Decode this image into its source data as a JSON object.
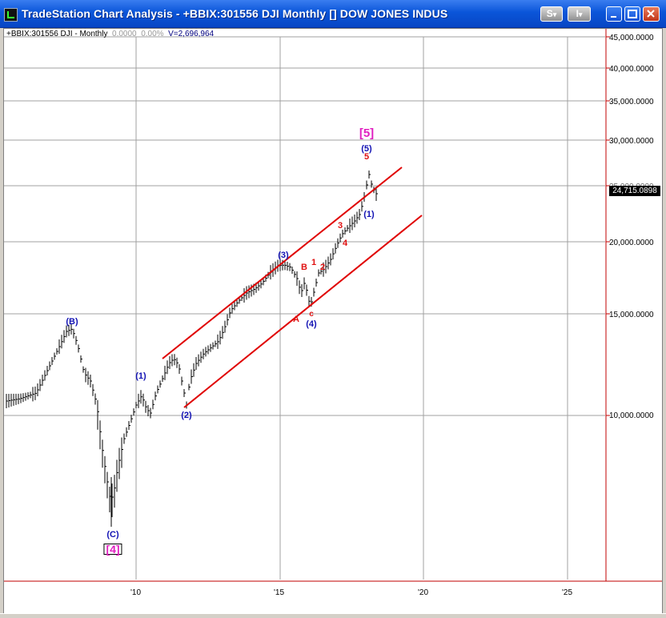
{
  "window": {
    "title": "TradeStation Chart Analysis - +BBIX:301556 DJI Monthly [] DOW JONES INDUS",
    "buttons": {
      "s_menu": "S",
      "i_menu": "I",
      "dropdown_arrow": "▾"
    }
  },
  "chart": {
    "header": {
      "symbol": "+BBIX:301556 DJI - Monthly",
      "change": "0.0000",
      "change_pct": "0.00%",
      "volume": "V=2,696,964"
    },
    "last_price": "24,715.0898",
    "price_labels": [
      "45,000.0000",
      "40,000.0000",
      "35,000.0000",
      "30,000.0000",
      "20,000.0000",
      "15,000.0000",
      "10,000.0000"
    ],
    "hidden_price_label": "25,000.0000",
    "time_labels": [
      "'10",
      "'15",
      "'20",
      "'25"
    ],
    "wave_labels": {
      "B_paren": "(B)",
      "C_paren": "(C)",
      "four_box": "[4]",
      "one_paren_a": "(1)",
      "two_paren": "(2)",
      "three_paren": "(3)",
      "four_paren": "(4)",
      "five_paren": "(5)",
      "one_paren_b": "(1)",
      "five_box": "[5]",
      "A": "A",
      "B": "B",
      "C": "c",
      "r1": "1",
      "r2": "2",
      "r3": "3",
      "r4": "4",
      "r5": "5"
    },
    "colors": {
      "price_bars": "#000000",
      "channel": "#e00000",
      "grid": "#a0a0a0",
      "axis_border": "#c00000",
      "wave_blue": "#1212b4",
      "wave_red": "#e01010",
      "wave_magenta": "#e020c0"
    }
  }
}
